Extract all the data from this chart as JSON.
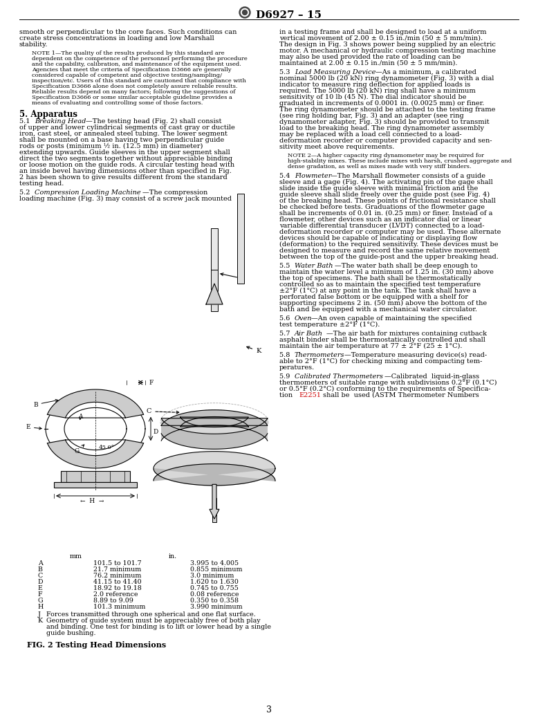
{
  "title": "D6927 – 15",
  "page_number": "3",
  "fig_caption": "FIG. 2 Testing Head Dimensions",
  "background_color": "#ffffff",
  "text_color": "#000000",
  "link_color": "#cc0000",
  "table_rows": [
    [
      "A",
      "101.5 to 101.7",
      "3.995 to 4.005"
    ],
    [
      "B",
      "21.7 minimum",
      "0.855 minimum"
    ],
    [
      "C",
      "76.2 minimum",
      "3.0 minimum"
    ],
    [
      "D",
      "41.15 to 41.40",
      "1.620 to 1.630"
    ],
    [
      "E",
      "18.92 to 19.18",
      "0.745 to 0.755"
    ],
    [
      "F",
      "2.0 reference",
      "0.08 reference"
    ],
    [
      "G",
      "8.89 to 9.09",
      "0.350 to 0.358"
    ],
    [
      "H",
      "101.3 minimum",
      "3.990 minimum"
    ]
  ]
}
